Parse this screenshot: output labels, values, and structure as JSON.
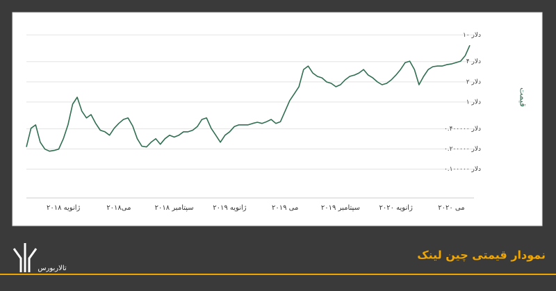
{
  "chart_data": {
    "type": "line",
    "title": "نمودار قیمتی چین لینک",
    "y_label": "قیمت",
    "log_scale": true,
    "grid": true,
    "color": "#2f6e50",
    "categories": [
      null,
      null,
      null,
      null,
      null,
      null,
      null,
      null,
      "۲۰۱۸ ژانویه",
      null,
      null,
      null,
      null,
      null,
      null,
      null,
      null,
      null,
      null,
      null,
      "۲۰۱۸می",
      null,
      null,
      null,
      null,
      null,
      null,
      null,
      null,
      null,
      null,
      null,
      "۲۰۱۸ سپتامبر",
      null,
      null,
      null,
      null,
      null,
      null,
      null,
      null,
      null,
      null,
      null,
      "۲۰۱۹ ژانویه",
      null,
      null,
      null,
      null,
      null,
      null,
      null,
      null,
      null,
      null,
      null,
      "۲۰۱۹ می",
      null,
      null,
      null,
      null,
      null,
      null,
      null,
      null,
      null,
      null,
      null,
      "۲۰۱۹ سپتامبر",
      null,
      null,
      null,
      null,
      null,
      null,
      null,
      null,
      null,
      null,
      null,
      "۲۰۲۰ ژانویه",
      null,
      null,
      null,
      null,
      null,
      null,
      null,
      null,
      null,
      null,
      null,
      "۲۰۲۰ می",
      null,
      null,
      null,
      null
    ],
    "values": [
      0.214,
      0.406,
      0.457,
      0.252,
      0.199,
      0.185,
      0.19,
      0.199,
      0.284,
      0.457,
      0.93,
      1.18,
      0.73,
      0.58,
      0.65,
      0.48,
      0.38,
      0.36,
      0.32,
      0.406,
      0.48,
      0.55,
      0.58,
      0.44,
      0.284,
      0.22,
      0.214,
      0.252,
      0.284,
      0.235,
      0.284,
      0.32,
      0.3,
      0.32,
      0.36,
      0.36,
      0.38,
      0.43,
      0.55,
      0.58,
      0.406,
      0.32,
      0.252,
      0.32,
      0.36,
      0.43,
      0.457,
      0.457,
      0.457,
      0.48,
      0.5,
      0.48,
      0.51,
      0.55,
      0.48,
      0.51,
      0.73,
      1.05,
      1.33,
      1.69,
      3.05,
      3.44,
      2.71,
      2.41,
      2.29,
      1.99,
      1.9,
      1.69,
      1.81,
      2.14,
      2.41,
      2.52,
      2.71,
      3.05,
      2.52,
      2.29,
      1.99,
      1.81,
      1.9,
      2.14,
      2.52,
      3.05,
      3.87,
      4.06,
      3.05,
      1.81,
      2.41,
      3.05,
      3.36,
      3.44,
      3.44,
      3.6,
      3.69,
      3.87,
      4.06,
      4.91,
      7.0
    ],
    "ylim": [
      0.04,
      17
    ],
    "yticks": [
      {
        "value": 10,
        "label": "۱۰ دلار"
      },
      {
        "value": 4,
        "label": "۴ دلار"
      },
      {
        "value": 2,
        "label": "۲ دلار"
      },
      {
        "value": 1,
        "label": "۱ دلار"
      },
      {
        "value": 0.4,
        "label": "۰.۴۰۰۰۰۰ دلار"
      },
      {
        "value": 0.2,
        "label": "۰.۲۰۰۰۰۰ دلار"
      },
      {
        "value": 0.1,
        "label": "۰.۱۰۰۰۰۰ دلار"
      }
    ]
  },
  "footer": {
    "brand": "تالاربورس"
  }
}
